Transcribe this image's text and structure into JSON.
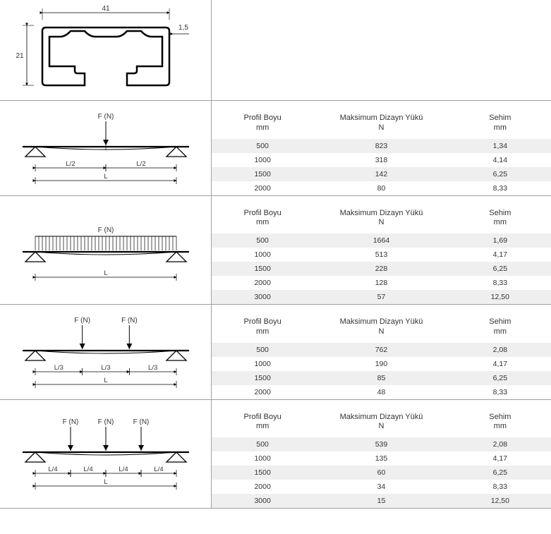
{
  "profile": {
    "width_dim": "41",
    "height_dim": "21",
    "thk_dim": "1,5"
  },
  "headers": {
    "c1a": "Profil Boyu",
    "c1b": "mm",
    "c2a": "Maksimum Dizayn Yükü",
    "c2b": "N",
    "c3a": "Sehim",
    "c3b": "mm"
  },
  "diag": {
    "F": "F (N)",
    "L": "L",
    "L2": "L/2",
    "L3": "L/3",
    "L4": "L/4"
  },
  "sections": [
    {
      "type": "center_point",
      "rows": [
        {
          "pb": "500",
          "my": "823",
          "s": "1,34"
        },
        {
          "pb": "1000",
          "my": "318",
          "s": "4,14"
        },
        {
          "pb": "1500",
          "my": "142",
          "s": "6,25"
        },
        {
          "pb": "2000",
          "my": "80",
          "s": "8,33"
        }
      ]
    },
    {
      "type": "uniform",
      "rows": [
        {
          "pb": "500",
          "my": "1664",
          "s": "1,69"
        },
        {
          "pb": "1000",
          "my": "513",
          "s": "4,17"
        },
        {
          "pb": "1500",
          "my": "228",
          "s": "6,25"
        },
        {
          "pb": "2000",
          "my": "128",
          "s": "8,33"
        },
        {
          "pb": "3000",
          "my": "57",
          "s": "12,50"
        }
      ]
    },
    {
      "type": "two_point",
      "rows": [
        {
          "pb": "500",
          "my": "762",
          "s": "2,08"
        },
        {
          "pb": "1000",
          "my": "190",
          "s": "4,17"
        },
        {
          "pb": "1500",
          "my": "85",
          "s": "6,25"
        },
        {
          "pb": "2000",
          "my": "48",
          "s": "8,33"
        }
      ]
    },
    {
      "type": "three_point",
      "rows": [
        {
          "pb": "500",
          "my": "539",
          "s": "2,08"
        },
        {
          "pb": "1000",
          "my": "135",
          "s": "4,17"
        },
        {
          "pb": "1500",
          "my": "60",
          "s": "6,25"
        },
        {
          "pb": "2000",
          "my": "34",
          "s": "8,33"
        },
        {
          "pb": "3000",
          "my": "15",
          "s": "12,50"
        }
      ]
    }
  ],
  "style": {
    "beam_stroke": "#000000",
    "dim_stroke": "#000000",
    "text_color": "#333333",
    "row_alt_bg": "#efefef",
    "border_color": "#a0a0a0",
    "svg_font_size": 10
  }
}
